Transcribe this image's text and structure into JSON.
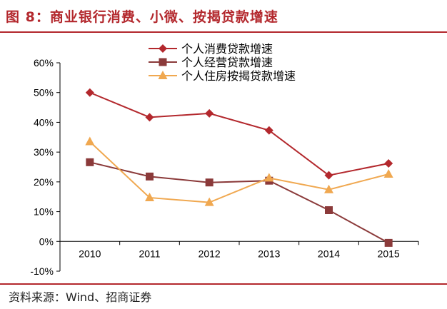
{
  "figure": {
    "title": "图 8：商业银行消费、小微、按揭贷款增速",
    "source": "资料来源：Wind、招商证券"
  },
  "chart_data": {
    "type": "line",
    "title": "",
    "xlabel": "",
    "ylabel": "",
    "categories": [
      "2010",
      "2011",
      "2012",
      "2013",
      "2014",
      "2015"
    ],
    "ylim": [
      -10,
      60
    ],
    "ytick_step": 10,
    "ytick_suffix": "%",
    "grid": false,
    "legend_position": "top-center",
    "series": [
      {
        "name": "个人消费贷款增速",
        "values": [
          50,
          41.7,
          43,
          37.3,
          22.2,
          26.2
        ],
        "color": "#b3282d",
        "marker": "diamond"
      },
      {
        "name": "个人经营贷款增速",
        "values": [
          26.6,
          21.8,
          19.8,
          20.4,
          10.5,
          -0.5
        ],
        "color": "#8b3a3a",
        "marker": "square"
      },
      {
        "name": "个人住房按揭贷款增速",
        "values": [
          33.5,
          14.7,
          13.1,
          21.3,
          17.4,
          22.6
        ],
        "color": "#f0a850",
        "marker": "triangle"
      }
    ]
  }
}
